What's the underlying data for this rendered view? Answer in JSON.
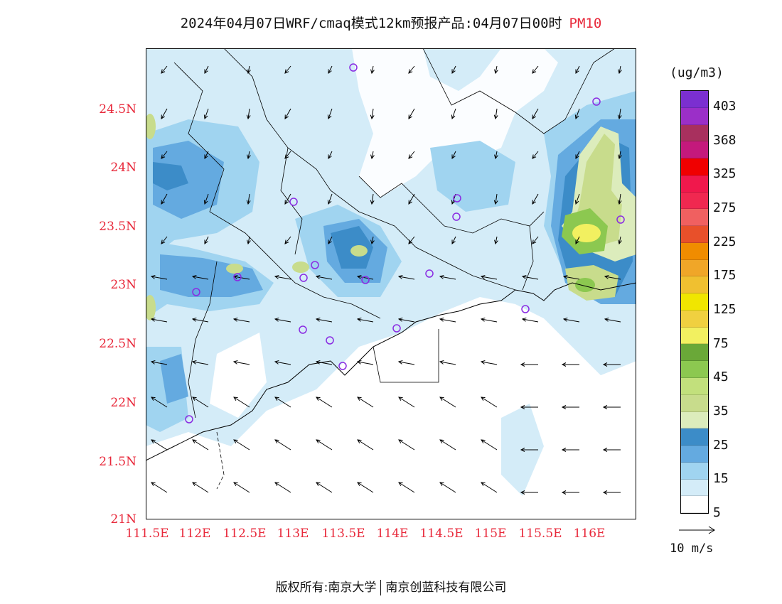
{
  "title": {
    "main": "2024年04月07日WRF/cmaq模式12km预报产品:04月07日00时",
    "pollutant": "PM10"
  },
  "axes": {
    "lat_labels": [
      "24.5N",
      "24N",
      "23.5N",
      "23N",
      "22.5N",
      "22N",
      "21.5N",
      "21N"
    ],
    "lon_labels": [
      "111.5E",
      "112E",
      "112.5E",
      "113E",
      "113.5E",
      "114E",
      "114.5E",
      "115E",
      "115.5E",
      "116E"
    ]
  },
  "colorbar": {
    "units": "(ug/m3)",
    "colors": [
      "#7b2fd0",
      "#9b2fc8",
      "#a8305e",
      "#c4197c",
      "#f00000",
      "#f0184c",
      "#f02850",
      "#f06060",
      "#e8502a",
      "#f08c00",
      "#f0a628",
      "#f0c030",
      "#f0e600",
      "#f0d040",
      "#f2f060",
      "#6aa838",
      "#8cc850",
      "#c2e07c",
      "#c8dc8c",
      "#dcecbc",
      "#3c8cc8",
      "#64aae0",
      "#a0d4f0",
      "#d4ecf8",
      "#ffffff"
    ],
    "labels": [
      "403",
      "368",
      "325",
      "275",
      "225",
      "175",
      "125",
      "75",
      "45",
      "35",
      "25",
      "15",
      "5"
    ]
  },
  "wind_reference": {
    "label": "10 m/s"
  },
  "footer": {
    "left": "版权所有:南京大学",
    "right": "南京创蓝科技有限公司"
  },
  "palette": {
    "lightest": "#d4ecf8",
    "light": "#a0d4f0",
    "mid": "#64aae0",
    "dark": "#3c8cc8",
    "pale_green": "#dcecbc",
    "green1": "#c8dc8c",
    "green2": "#c2e07c",
    "green3": "#8cc850",
    "yellow": "#f2f060",
    "station": "#8a2be2"
  }
}
